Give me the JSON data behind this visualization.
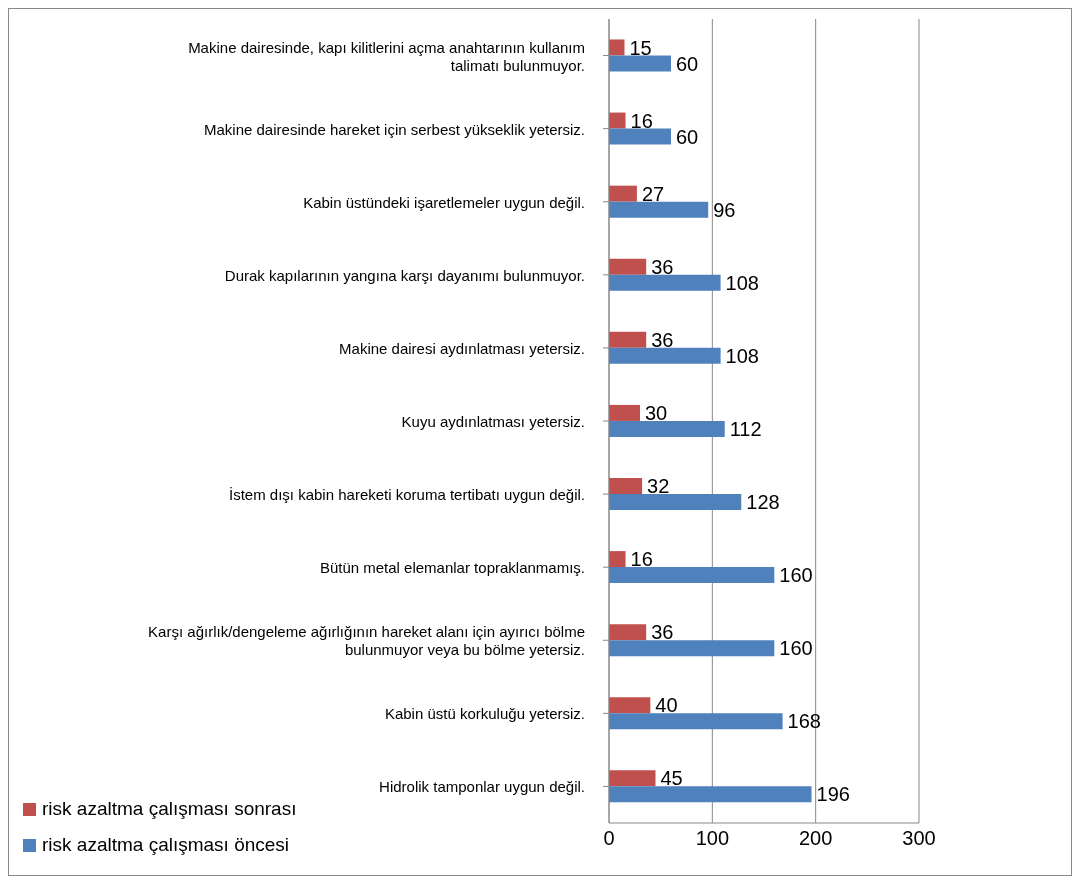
{
  "chart_data": {
    "type": "bar",
    "orientation": "horizontal",
    "categories": [
      "Makine dairesinde, kapı kilitlerini açma anahtarının kullanım talimatı bulunmuyor.",
      "Makine dairesinde hareket için serbest yükseklik yetersiz.",
      "Kabin üstündeki işaretlemeler uygun değil.",
      "Durak kapılarının yangına karşı dayanımı bulunmuyor.",
      "Makine dairesi aydınlatması yetersiz.",
      "Kuyu aydınlatması yetersiz.",
      "İstem dışı kabin hareketi koruma tertibatı uygun değil.",
      "Bütün metal elemanlar topraklanmamış.",
      "Karşı ağırlık/dengeleme ağırlığının hareket alanı için ayırıcı bölme bulunmuyor veya bu bölme yetersiz.",
      "Kabin üstü korkuluğu yetersiz.",
      "Hidrolik tamponlar uygun değil."
    ],
    "series": [
      {
        "name": "risk azaltma çalışması sonrası",
        "color": "#c0504d",
        "values": [
          15,
          16,
          27,
          36,
          36,
          30,
          32,
          16,
          36,
          40,
          45
        ]
      },
      {
        "name": "risk azaltma çalışması öncesi",
        "color": "#4f81bd",
        "values": [
          60,
          60,
          96,
          108,
          108,
          112,
          128,
          160,
          160,
          168,
          196
        ]
      }
    ],
    "xlim": [
      0,
      300
    ],
    "xticks": [
      0,
      100,
      200,
      300
    ],
    "grid": "x",
    "legend": "bottom left",
    "data_labels": true
  }
}
